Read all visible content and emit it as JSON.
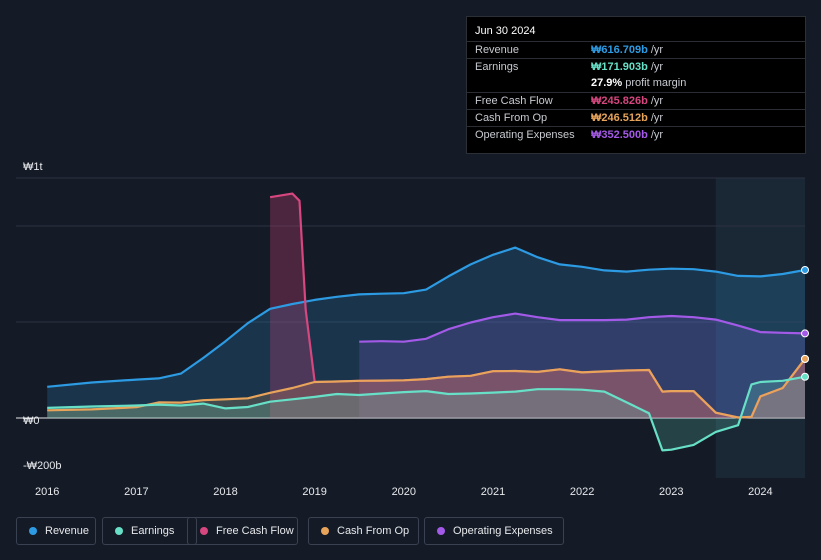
{
  "tooltip": {
    "date": "Jun 30 2024",
    "rows": [
      {
        "label": "Revenue",
        "value": "₩616.709b",
        "unit": "/yr",
        "color": "#2d9be3"
      },
      {
        "label": "Earnings",
        "value": "₩171.903b",
        "unit": "/yr",
        "color": "#67e0c7"
      },
      {
        "label": "",
        "value": "27.9%",
        "unit": "profit margin",
        "color": "#ffffff"
      },
      {
        "label": "Free Cash Flow",
        "value": "₩245.826b",
        "unit": "/yr",
        "color": "#d6467f"
      },
      {
        "label": "Cash From Op",
        "value": "₩246.512b",
        "unit": "/yr",
        "color": "#e8a45a"
      },
      {
        "label": "Operating Expenses",
        "value": "₩352.500b",
        "unit": "/yr",
        "color": "#a45ae8"
      }
    ]
  },
  "legend": [
    {
      "label": "Revenue",
      "color": "#2d9be3"
    },
    {
      "label": "Earnings",
      "color": "#67e0c7"
    },
    {
      "label": "Free Cash Flow",
      "color": "#d6467f"
    },
    {
      "label": "Cash From Op",
      "color": "#e8a45a"
    },
    {
      "label": "Operating Expenses",
      "color": "#a45ae8"
    }
  ],
  "chart_data": {
    "type": "area",
    "title": "",
    "xlabel": "",
    "ylabel": "",
    "x_ticks": [
      "2016",
      "2017",
      "2018",
      "2019",
      "2020",
      "2021",
      "2022",
      "2023",
      "2024"
    ],
    "y_ticks": [
      {
        "value": 1000,
        "label": "₩1t"
      },
      {
        "value": 0,
        "label": "₩0"
      },
      {
        "value": -200,
        "label": "-₩200b"
      }
    ],
    "xlim": [
      2015.65,
      2024.5
    ],
    "ylim": [
      -200,
      1000
    ],
    "forecast_start": 2023.5,
    "series": [
      {
        "name": "Revenue",
        "color": "#2d9be3",
        "points": [
          [
            2016.0,
            130
          ],
          [
            2016.5,
            148
          ],
          [
            2017.0,
            160
          ],
          [
            2017.25,
            165
          ],
          [
            2017.5,
            185
          ],
          [
            2017.75,
            250
          ],
          [
            2018.0,
            320
          ],
          [
            2018.25,
            395
          ],
          [
            2018.5,
            455
          ],
          [
            2018.75,
            475
          ],
          [
            2019.0,
            492
          ],
          [
            2019.25,
            505
          ],
          [
            2019.5,
            515
          ],
          [
            2019.75,
            518
          ],
          [
            2020.0,
            520
          ],
          [
            2020.25,
            535
          ],
          [
            2020.5,
            590
          ],
          [
            2020.75,
            640
          ],
          [
            2021.0,
            680
          ],
          [
            2021.25,
            710
          ],
          [
            2021.5,
            670
          ],
          [
            2021.75,
            640
          ],
          [
            2022.0,
            630
          ],
          [
            2022.25,
            615
          ],
          [
            2022.5,
            610
          ],
          [
            2022.75,
            618
          ],
          [
            2023.0,
            622
          ],
          [
            2023.25,
            620
          ],
          [
            2023.5,
            610
          ],
          [
            2023.75,
            592
          ],
          [
            2024.0,
            590
          ],
          [
            2024.25,
            600
          ],
          [
            2024.5,
            616.709
          ]
        ]
      },
      {
        "name": "Earnings",
        "color": "#67e0c7",
        "points": [
          [
            2016.0,
            42
          ],
          [
            2016.5,
            48
          ],
          [
            2017.0,
            52
          ],
          [
            2017.25,
            56
          ],
          [
            2017.5,
            52
          ],
          [
            2017.75,
            60
          ],
          [
            2018.0,
            40
          ],
          [
            2018.25,
            46
          ],
          [
            2018.5,
            68
          ],
          [
            2018.75,
            78
          ],
          [
            2019.0,
            88
          ],
          [
            2019.25,
            100
          ],
          [
            2019.5,
            96
          ],
          [
            2019.75,
            102
          ],
          [
            2020.0,
            108
          ],
          [
            2020.25,
            112
          ],
          [
            2020.5,
            100
          ],
          [
            2020.75,
            102
          ],
          [
            2021.0,
            106
          ],
          [
            2021.25,
            110
          ],
          [
            2021.5,
            120
          ],
          [
            2021.75,
            120
          ],
          [
            2022.0,
            118
          ],
          [
            2022.25,
            110
          ],
          [
            2022.5,
            65
          ],
          [
            2022.75,
            20
          ],
          [
            2022.9,
            -135
          ],
          [
            2023.0,
            -132
          ],
          [
            2023.25,
            -112
          ],
          [
            2023.5,
            -58
          ],
          [
            2023.75,
            -30
          ],
          [
            2023.9,
            140
          ],
          [
            2024.0,
            150
          ],
          [
            2024.25,
            155
          ],
          [
            2024.5,
            171.903
          ]
        ]
      },
      {
        "name": "Free Cash Flow",
        "color": "#d6467f",
        "points": [
          [
            2018.5,
            920
          ],
          [
            2018.75,
            935
          ],
          [
            2018.83,
            905
          ],
          [
            2018.9,
            450
          ],
          [
            2019.0,
            150
          ],
          [
            2019.25,
            152
          ],
          [
            2019.5,
            155
          ],
          [
            2019.75,
            156
          ],
          [
            2020.0,
            157
          ],
          [
            2020.25,
            162
          ],
          [
            2020.5,
            172
          ],
          [
            2020.75,
            176
          ],
          [
            2021.0,
            195
          ],
          [
            2021.25,
            196
          ],
          [
            2021.5,
            192
          ],
          [
            2021.75,
            203
          ],
          [
            2022.0,
            190
          ],
          [
            2022.25,
            194
          ],
          [
            2022.5,
            198
          ],
          [
            2022.75,
            200
          ],
          [
            2022.9,
            110
          ],
          [
            2023.0,
            112
          ],
          [
            2023.25,
            112
          ],
          [
            2023.5,
            22
          ],
          [
            2023.75,
            2
          ],
          [
            2023.9,
            5
          ],
          [
            2024.0,
            90
          ],
          [
            2024.25,
            125
          ],
          [
            2024.5,
            245.826
          ]
        ]
      },
      {
        "name": "Cash From Op",
        "color": "#e8a45a",
        "points": [
          [
            2016.0,
            32
          ],
          [
            2016.5,
            36
          ],
          [
            2017.0,
            45
          ],
          [
            2017.25,
            65
          ],
          [
            2017.5,
            64
          ],
          [
            2017.75,
            74
          ],
          [
            2018.0,
            78
          ],
          [
            2018.25,
            82
          ],
          [
            2018.5,
            105
          ],
          [
            2018.75,
            125
          ],
          [
            2019.0,
            150
          ],
          [
            2019.25,
            152
          ],
          [
            2019.5,
            155
          ],
          [
            2019.75,
            156
          ],
          [
            2020.0,
            157
          ],
          [
            2020.25,
            162
          ],
          [
            2020.5,
            172
          ],
          [
            2020.75,
            176
          ],
          [
            2021.0,
            195
          ],
          [
            2021.25,
            196
          ],
          [
            2021.5,
            192
          ],
          [
            2021.75,
            203
          ],
          [
            2022.0,
            190
          ],
          [
            2022.25,
            194
          ],
          [
            2022.5,
            198
          ],
          [
            2022.75,
            200
          ],
          [
            2022.9,
            110
          ],
          [
            2023.0,
            112
          ],
          [
            2023.25,
            112
          ],
          [
            2023.5,
            22
          ],
          [
            2023.75,
            2
          ],
          [
            2023.9,
            5
          ],
          [
            2024.0,
            90
          ],
          [
            2024.25,
            125
          ],
          [
            2024.5,
            246.512
          ]
        ]
      },
      {
        "name": "Operating Expenses",
        "color": "#a45ae8",
        "points": [
          [
            2019.5,
            318
          ],
          [
            2019.75,
            320
          ],
          [
            2020.0,
            318
          ],
          [
            2020.25,
            330
          ],
          [
            2020.5,
            370
          ],
          [
            2020.75,
            398
          ],
          [
            2021.0,
            420
          ],
          [
            2021.25,
            435
          ],
          [
            2021.5,
            420
          ],
          [
            2021.75,
            408
          ],
          [
            2022.0,
            408
          ],
          [
            2022.25,
            408
          ],
          [
            2022.5,
            410
          ],
          [
            2022.75,
            420
          ],
          [
            2023.0,
            425
          ],
          [
            2023.25,
            420
          ],
          [
            2023.5,
            410
          ],
          [
            2023.75,
            385
          ],
          [
            2024.0,
            358
          ],
          [
            2024.25,
            355
          ],
          [
            2024.5,
            352.5
          ]
        ]
      }
    ]
  }
}
